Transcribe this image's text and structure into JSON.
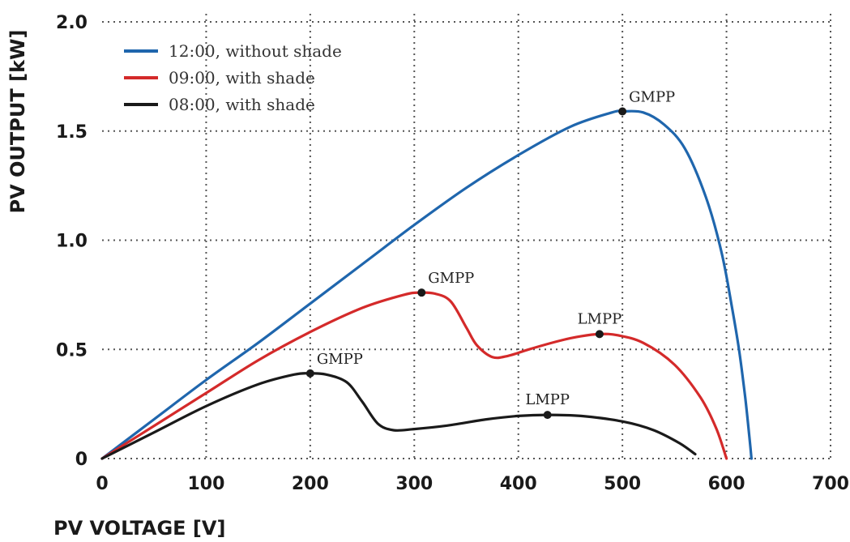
{
  "chart_data": {
    "type": "line",
    "xlabel": "PV VOLTAGE [V]",
    "ylabel": "PV OUTPUT [kW]",
    "xlim": [
      0,
      700
    ],
    "ylim": [
      0,
      2.0
    ],
    "x_ticks": [
      0,
      100,
      200,
      300,
      400,
      500,
      600,
      700
    ],
    "x_tick_labels": [
      "0",
      "100",
      "200",
      "300",
      "400",
      "500",
      "600",
      "700"
    ],
    "y_ticks": [
      0,
      0.5,
      1.0,
      1.5,
      2.0
    ],
    "y_tick_labels": [
      "0",
      "0.5",
      "1.0",
      "1.5",
      "2.0"
    ],
    "grid": true,
    "legend_position": "top-left",
    "series": [
      {
        "name": "12:00, without shade",
        "color": "#1f66ad",
        "points": [
          [
            0,
            0
          ],
          [
            50,
            0.18
          ],
          [
            100,
            0.36
          ],
          [
            150,
            0.53
          ],
          [
            200,
            0.71
          ],
          [
            250,
            0.89
          ],
          [
            300,
            1.07
          ],
          [
            350,
            1.24
          ],
          [
            400,
            1.39
          ],
          [
            450,
            1.52
          ],
          [
            490,
            1.585
          ],
          [
            500,
            1.59
          ],
          [
            520,
            1.585
          ],
          [
            540,
            1.53
          ],
          [
            560,
            1.42
          ],
          [
            580,
            1.2
          ],
          [
            595,
            0.95
          ],
          [
            605,
            0.7
          ],
          [
            612,
            0.5
          ],
          [
            618,
            0.28
          ],
          [
            622,
            0.1
          ],
          [
            624,
            0
          ]
        ]
      },
      {
        "name": "09:00, with shade",
        "color": "#d42a2a",
        "points": [
          [
            0,
            0
          ],
          [
            50,
            0.15
          ],
          [
            100,
            0.3
          ],
          [
            150,
            0.45
          ],
          [
            200,
            0.58
          ],
          [
            250,
            0.69
          ],
          [
            290,
            0.75
          ],
          [
            305,
            0.76
          ],
          [
            320,
            0.755
          ],
          [
            335,
            0.72
          ],
          [
            350,
            0.6
          ],
          [
            360,
            0.52
          ],
          [
            375,
            0.465
          ],
          [
            390,
            0.47
          ],
          [
            410,
            0.5
          ],
          [
            440,
            0.54
          ],
          [
            460,
            0.56
          ],
          [
            478,
            0.57
          ],
          [
            495,
            0.565
          ],
          [
            520,
            0.53
          ],
          [
            550,
            0.43
          ],
          [
            575,
            0.28
          ],
          [
            590,
            0.14
          ],
          [
            600,
            0
          ]
        ]
      },
      {
        "name": "08:00, with shade",
        "color": "#1a1a1a",
        "points": [
          [
            0,
            0
          ],
          [
            50,
            0.12
          ],
          [
            100,
            0.24
          ],
          [
            150,
            0.34
          ],
          [
            185,
            0.385
          ],
          [
            200,
            0.39
          ],
          [
            215,
            0.385
          ],
          [
            235,
            0.35
          ],
          [
            250,
            0.26
          ],
          [
            265,
            0.16
          ],
          [
            280,
            0.13
          ],
          [
            300,
            0.135
          ],
          [
            330,
            0.15
          ],
          [
            370,
            0.18
          ],
          [
            400,
            0.195
          ],
          [
            428,
            0.2
          ],
          [
            460,
            0.195
          ],
          [
            500,
            0.17
          ],
          [
            530,
            0.13
          ],
          [
            555,
            0.07
          ],
          [
            570,
            0.02
          ]
        ]
      }
    ],
    "annotations": [
      {
        "text": "GMPP",
        "x": 500,
        "y": 1.59,
        "series": "12:00, without shade"
      },
      {
        "text": "GMPP",
        "x": 307,
        "y": 0.76,
        "series": "09:00, with shade"
      },
      {
        "text": "LMPP",
        "x": 478,
        "y": 0.57,
        "series": "09:00, with shade"
      },
      {
        "text": "GMPP",
        "x": 200,
        "y": 0.39,
        "series": "08:00, with shade"
      },
      {
        "text": "LMPP",
        "x": 428,
        "y": 0.2,
        "series": "08:00, with shade"
      }
    ]
  }
}
